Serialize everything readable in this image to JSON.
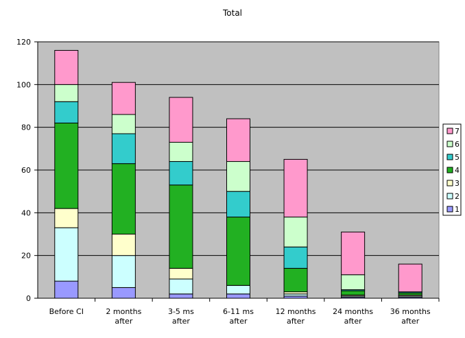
{
  "chart_data": {
    "type": "bar",
    "stacked": true,
    "title": "Total",
    "xlabel": "",
    "ylabel": "",
    "categories": [
      [
        "Before CI"
      ],
      [
        "2 months",
        "after"
      ],
      [
        "3-5 ms",
        "after"
      ],
      [
        "6-11 ms",
        "after"
      ],
      [
        "12 months",
        "after"
      ],
      [
        "24 months",
        "after"
      ],
      [
        "36 months",
        "after"
      ]
    ],
    "ylim": [
      0,
      120
    ],
    "yticks": [
      "0",
      "20",
      "40",
      "60",
      "80",
      "100",
      "120"
    ],
    "grid": true,
    "legend_position": "right",
    "series": [
      {
        "name": "1",
        "color": "#9999ff",
        "values": [
          8,
          5,
          2,
          2,
          1,
          0.5,
          0.5
        ]
      },
      {
        "name": "2",
        "color": "#ccffff",
        "values": [
          25,
          15,
          7,
          4,
          1,
          0.5,
          0.5
        ]
      },
      {
        "name": "3",
        "color": "#ffffcc",
        "values": [
          9,
          10,
          5,
          0,
          1,
          0.5,
          0.5
        ]
      },
      {
        "name": "4",
        "color": "#22b022",
        "values": [
          40,
          33,
          39,
          32,
          11,
          2,
          1
        ]
      },
      {
        "name": "5",
        "color": "#33cccc",
        "values": [
          10,
          14,
          11,
          12,
          10,
          0.5,
          0.5
        ]
      },
      {
        "name": "6",
        "color": "#ccffcc",
        "values": [
          8,
          9,
          9,
          14,
          14,
          7,
          0
        ]
      },
      {
        "name": "7",
        "color": "#ff99cc",
        "values": [
          16,
          15,
          21,
          20,
          27,
          20,
          13
        ]
      }
    ]
  }
}
